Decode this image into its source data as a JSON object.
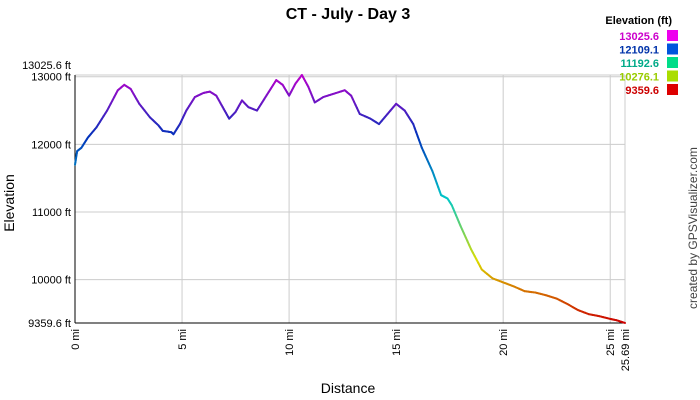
{
  "chart_data": {
    "type": "line",
    "title": "CT - July - Day 3",
    "xlabel": "Distance",
    "ylabel": "Elevation",
    "xlim": [
      0,
      25.69
    ],
    "ylim": [
      9359.6,
      13025.6
    ],
    "grid": true,
    "x_ticks": [
      {
        "value": 0,
        "label": "0 mi"
      },
      {
        "value": 5,
        "label": "5 mi"
      },
      {
        "value": 10,
        "label": "10 mi"
      },
      {
        "value": 15,
        "label": "15 mi"
      },
      {
        "value": 20,
        "label": "20 mi"
      },
      {
        "value": 25,
        "label": "25 mi"
      },
      {
        "value": 25.69,
        "label": "25.69 mi"
      }
    ],
    "y_ticks": [
      {
        "value": 9359.6,
        "label": "9359.6 ft"
      },
      {
        "value": 10000,
        "label": "10000 ft"
      },
      {
        "value": 11000,
        "label": "11000 ft"
      },
      {
        "value": 12000,
        "label": "12000 ft"
      },
      {
        "value": 13000,
        "label": "13000 ft"
      },
      {
        "value": 13025.6,
        "label": "13025.6 ft"
      }
    ],
    "legend": {
      "title": "Elevation (ft)",
      "placement": "top-right",
      "entries": [
        {
          "label": "13025.6",
          "color": "#cc00cc",
          "swatch": "#ee00ee"
        },
        {
          "label": "12109.1",
          "color": "#0033aa",
          "swatch": "#0055dd"
        },
        {
          "label": "11192.6",
          "color": "#00aa88",
          "swatch": "#00dd88"
        },
        {
          "label": "10276.1",
          "color": "#99cc00",
          "swatch": "#aadd00"
        },
        {
          "label": "9359.6",
          "color": "#cc0000",
          "swatch": "#dd0000"
        }
      ]
    },
    "series": [
      {
        "x": [
          0,
          0.1,
          0.3,
          0.6,
          1.0,
          1.5,
          2.0,
          2.3,
          2.6,
          3.0,
          3.5,
          3.9,
          4.1,
          4.5,
          4.6,
          4.9,
          5.2,
          5.6,
          6.0,
          6.3,
          6.6,
          6.9,
          7.2,
          7.5,
          7.8,
          8.1,
          8.5,
          8.8,
          9.1,
          9.4,
          9.7,
          10.0,
          10.3,
          10.6,
          10.9,
          11.2,
          11.6,
          12.1,
          12.6,
          12.9,
          13.3,
          13.8,
          14.2,
          14.6,
          15.0,
          15.4,
          15.8,
          16.2,
          16.7,
          17.1,
          17.4,
          17.6,
          18.0,
          18.5,
          19.0,
          19.5,
          20.0,
          20.5,
          21.0,
          21.5,
          22.0,
          22.5,
          23.0,
          23.5,
          24.0,
          24.5,
          25.0,
          25.3,
          25.69
        ],
        "y": [
          11700,
          11900,
          11950,
          12100,
          12250,
          12500,
          12800,
          12880,
          12820,
          12600,
          12400,
          12280,
          12200,
          12180,
          12150,
          12300,
          12500,
          12700,
          12760,
          12780,
          12720,
          12550,
          12380,
          12480,
          12650,
          12550,
          12500,
          12650,
          12800,
          12950,
          12880,
          12720,
          12900,
          13025,
          12850,
          12620,
          12700,
          12750,
          12800,
          12720,
          12450,
          12380,
          12300,
          12450,
          12600,
          12500,
          12300,
          11950,
          11600,
          11250,
          11200,
          11100,
          10800,
          10450,
          10150,
          10020,
          9960,
          9900,
          9830,
          9810,
          9770,
          9720,
          9640,
          9550,
          9490,
          9460,
          9420,
          9400,
          9360
        ]
      }
    ]
  },
  "credit": "created by GPSVisualizer.com"
}
